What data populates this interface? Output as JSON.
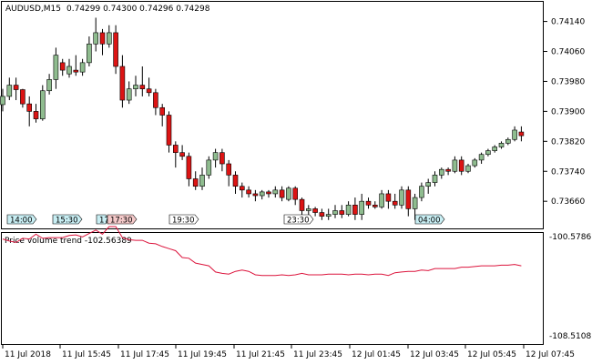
{
  "header": {
    "symbol": "AUDUSD,M15",
    "ohlc": "0.74299 0.74300 0.74296 0.74298"
  },
  "indicator": {
    "title": "Price volume trend -102.56389",
    "scale_top": "-100.57867",
    "scale_bottom": "-108.51081",
    "line_color": "#dc143c"
  },
  "colors": {
    "bull": "#8fbc8f",
    "bear": "#dc1414",
    "wick": "#000000",
    "border": "#000000"
  },
  "price_axis": {
    "labels": [
      "0.74140",
      "0.74060",
      "0.73980",
      "0.73900",
      "0.73820",
      "0.73740",
      "0.73660"
    ]
  },
  "time_axis": {
    "labels": [
      "11 Jul 2018",
      "11 Jul 15:45",
      "11 Jul 17:45",
      "11 Jul 19:45",
      "11 Jul 21:45",
      "11 Jul 23:45",
      "12 Jul 01:45",
      "12 Jul 03:45",
      "12 Jul 05:45",
      "12 Jul 07:45"
    ]
  },
  "time_markers": [
    {
      "label": "14:00",
      "color": "#c8eef3"
    },
    {
      "label": "15:30",
      "color": "#c8eef3"
    },
    {
      "label": "17:",
      "color": "#c8eef3"
    },
    {
      "label": "17:30",
      "color": "#f3c8c8"
    },
    {
      "label": "19:30",
      "color": "#ffffff"
    },
    {
      "label": "23:30",
      "color": "#ffffff"
    },
    {
      "label": "04:00",
      "color": "#c8eef3"
    }
  ],
  "chart_data": {
    "type": "candlestick",
    "candles": [
      {
        "o": 0.73918,
        "h": 0.7396,
        "l": 0.739,
        "c": 0.7394
      },
      {
        "o": 0.7394,
        "h": 0.7399,
        "l": 0.7393,
        "c": 0.7397
      },
      {
        "o": 0.7397,
        "h": 0.7399,
        "l": 0.7393,
        "c": 0.73958
      },
      {
        "o": 0.73958,
        "h": 0.7396,
        "l": 0.7391,
        "c": 0.7392
      },
      {
        "o": 0.7392,
        "h": 0.7394,
        "l": 0.7386,
        "c": 0.739
      },
      {
        "o": 0.739,
        "h": 0.7392,
        "l": 0.7387,
        "c": 0.7388
      },
      {
        "o": 0.7388,
        "h": 0.7397,
        "l": 0.73875,
        "c": 0.73955
      },
      {
        "o": 0.73955,
        "h": 0.74,
        "l": 0.73945,
        "c": 0.73985
      },
      {
        "o": 0.73985,
        "h": 0.7407,
        "l": 0.7396,
        "c": 0.7405
      },
      {
        "o": 0.7403,
        "h": 0.7404,
        "l": 0.73995,
        "c": 0.7401
      },
      {
        "o": 0.74,
        "h": 0.7404,
        "l": 0.7399,
        "c": 0.7402
      },
      {
        "o": 0.7401,
        "h": 0.7405,
        "l": 0.73995,
        "c": 0.74005
      },
      {
        "o": 0.74005,
        "h": 0.7404,
        "l": 0.73995,
        "c": 0.7403
      },
      {
        "o": 0.7403,
        "h": 0.741,
        "l": 0.7402,
        "c": 0.7408
      },
      {
        "o": 0.7408,
        "h": 0.7415,
        "l": 0.7406,
        "c": 0.7411
      },
      {
        "o": 0.7411,
        "h": 0.7412,
        "l": 0.7405,
        "c": 0.7408
      },
      {
        "o": 0.7408,
        "h": 0.7413,
        "l": 0.7407,
        "c": 0.7411
      },
      {
        "o": 0.7411,
        "h": 0.7413,
        "l": 0.74,
        "c": 0.7402
      },
      {
        "o": 0.7402,
        "h": 0.7405,
        "l": 0.7391,
        "c": 0.7393
      },
      {
        "o": 0.7393,
        "h": 0.7398,
        "l": 0.7392,
        "c": 0.7396
      },
      {
        "o": 0.7396,
        "h": 0.73995,
        "l": 0.7394,
        "c": 0.7397
      },
      {
        "o": 0.7397,
        "h": 0.7402,
        "l": 0.7394,
        "c": 0.7396
      },
      {
        "o": 0.7396,
        "h": 0.7399,
        "l": 0.7394,
        "c": 0.7395
      },
      {
        "o": 0.7395,
        "h": 0.7396,
        "l": 0.7389,
        "c": 0.7391
      },
      {
        "o": 0.7391,
        "h": 0.7392,
        "l": 0.7386,
        "c": 0.7389
      },
      {
        "o": 0.7389,
        "h": 0.739,
        "l": 0.7379,
        "c": 0.7381
      },
      {
        "o": 0.7381,
        "h": 0.7382,
        "l": 0.7375,
        "c": 0.7379
      },
      {
        "o": 0.7379,
        "h": 0.7381,
        "l": 0.7377,
        "c": 0.7378
      },
      {
        "o": 0.7378,
        "h": 0.7379,
        "l": 0.737,
        "c": 0.7372
      },
      {
        "o": 0.7372,
        "h": 0.7374,
        "l": 0.7369,
        "c": 0.737
      },
      {
        "o": 0.737,
        "h": 0.7375,
        "l": 0.7369,
        "c": 0.7373
      },
      {
        "o": 0.7373,
        "h": 0.7378,
        "l": 0.7372,
        "c": 0.7377
      },
      {
        "o": 0.7377,
        "h": 0.738,
        "l": 0.7375,
        "c": 0.7379
      },
      {
        "o": 0.7379,
        "h": 0.738,
        "l": 0.7374,
        "c": 0.7376
      },
      {
        "o": 0.7376,
        "h": 0.7377,
        "l": 0.737,
        "c": 0.7373
      },
      {
        "o": 0.7373,
        "h": 0.7374,
        "l": 0.7368,
        "c": 0.737
      },
      {
        "o": 0.737,
        "h": 0.7371,
        "l": 0.7367,
        "c": 0.7369
      },
      {
        "o": 0.7369,
        "h": 0.737,
        "l": 0.7367,
        "c": 0.7368
      },
      {
        "o": 0.7368,
        "h": 0.7369,
        "l": 0.7366,
        "c": 0.73675
      },
      {
        "o": 0.73675,
        "h": 0.7369,
        "l": 0.73665,
        "c": 0.73685
      },
      {
        "o": 0.73685,
        "h": 0.7369,
        "l": 0.7367,
        "c": 0.7368
      },
      {
        "o": 0.7368,
        "h": 0.737,
        "l": 0.7367,
        "c": 0.7369
      },
      {
        "o": 0.7369,
        "h": 0.737,
        "l": 0.7366,
        "c": 0.7367
      },
      {
        "o": 0.73665,
        "h": 0.737,
        "l": 0.7366,
        "c": 0.73695
      },
      {
        "o": 0.73695,
        "h": 0.737,
        "l": 0.7365,
        "c": 0.73665
      },
      {
        "o": 0.73665,
        "h": 0.7367,
        "l": 0.7362,
        "c": 0.73635
      },
      {
        "o": 0.73635,
        "h": 0.7365,
        "l": 0.7362,
        "c": 0.7364
      },
      {
        "o": 0.7364,
        "h": 0.73645,
        "l": 0.7362,
        "c": 0.7363
      },
      {
        "o": 0.7363,
        "h": 0.7364,
        "l": 0.7361,
        "c": 0.7362
      },
      {
        "o": 0.7362,
        "h": 0.7364,
        "l": 0.7361,
        "c": 0.73625
      },
      {
        "o": 0.73625,
        "h": 0.7365,
        "l": 0.73615,
        "c": 0.73635
      },
      {
        "o": 0.73635,
        "h": 0.7365,
        "l": 0.73615,
        "c": 0.73625
      },
      {
        "o": 0.73625,
        "h": 0.7366,
        "l": 0.7362,
        "c": 0.7365
      },
      {
        "o": 0.7365,
        "h": 0.7367,
        "l": 0.7361,
        "c": 0.73625
      },
      {
        "o": 0.73625,
        "h": 0.7368,
        "l": 0.7361,
        "c": 0.7366
      },
      {
        "o": 0.7366,
        "h": 0.7367,
        "l": 0.7364,
        "c": 0.7365
      },
      {
        "o": 0.7365,
        "h": 0.7366,
        "l": 0.7364,
        "c": 0.73645
      },
      {
        "o": 0.73645,
        "h": 0.7369,
        "l": 0.7364,
        "c": 0.7368
      },
      {
        "o": 0.7368,
        "h": 0.7369,
        "l": 0.7364,
        "c": 0.7366
      },
      {
        "o": 0.7366,
        "h": 0.7368,
        "l": 0.7364,
        "c": 0.7365
      },
      {
        "o": 0.7365,
        "h": 0.737,
        "l": 0.7364,
        "c": 0.7369
      },
      {
        "o": 0.7369,
        "h": 0.737,
        "l": 0.7362,
        "c": 0.7364
      },
      {
        "o": 0.7364,
        "h": 0.7368,
        "l": 0.7361,
        "c": 0.7367
      },
      {
        "o": 0.7367,
        "h": 0.7371,
        "l": 0.7366,
        "c": 0.737
      },
      {
        "o": 0.737,
        "h": 0.7372,
        "l": 0.7368,
        "c": 0.7371
      },
      {
        "o": 0.7371,
        "h": 0.7374,
        "l": 0.737,
        "c": 0.7373
      },
      {
        "o": 0.7373,
        "h": 0.7375,
        "l": 0.7372,
        "c": 0.73745
      },
      {
        "o": 0.73745,
        "h": 0.7375,
        "l": 0.7373,
        "c": 0.7374
      },
      {
        "o": 0.7374,
        "h": 0.7378,
        "l": 0.73735,
        "c": 0.7377
      },
      {
        "o": 0.7377,
        "h": 0.7378,
        "l": 0.7373,
        "c": 0.7374
      },
      {
        "o": 0.7374,
        "h": 0.7376,
        "l": 0.73735,
        "c": 0.73755
      },
      {
        "o": 0.73755,
        "h": 0.73775,
        "l": 0.7375,
        "c": 0.7377
      },
      {
        "o": 0.7377,
        "h": 0.7379,
        "l": 0.7376,
        "c": 0.73785
      },
      {
        "o": 0.73785,
        "h": 0.738,
        "l": 0.7378,
        "c": 0.73795
      },
      {
        "o": 0.73795,
        "h": 0.7381,
        "l": 0.7379,
        "c": 0.73805
      },
      {
        "o": 0.73805,
        "h": 0.7382,
        "l": 0.738,
        "c": 0.73815
      },
      {
        "o": 0.73815,
        "h": 0.7383,
        "l": 0.7381,
        "c": 0.73825
      },
      {
        "o": 0.73825,
        "h": 0.7386,
        "l": 0.7382,
        "c": 0.7385
      },
      {
        "o": 0.73845,
        "h": 0.7386,
        "l": 0.7382,
        "c": 0.73835
      }
    ],
    "pvt": [
      -100.95,
      -101.1,
      -101.2,
      -100.9,
      -100.95,
      -100.6,
      -100.9,
      -100.85,
      -100.85,
      -100.85,
      -100.7,
      -100.65,
      -100.8,
      -100.55,
      -100.3,
      -100.6,
      -100.05,
      -100.05,
      -100.85,
      -101.0,
      -101.05,
      -101.05,
      -101.25,
      -101.3,
      -101.5,
      -101.65,
      -101.8,
      -102.3,
      -102.35,
      -102.7,
      -102.8,
      -102.9,
      -103.35,
      -103.45,
      -103.5,
      -103.3,
      -103.2,
      -103.3,
      -103.55,
      -103.6,
      -103.6,
      -103.6,
      -103.55,
      -103.6,
      -103.55,
      -103.45,
      -103.55,
      -103.55,
      -103.55,
      -103.5,
      -103.5,
      -103.5,
      -103.55,
      -103.5,
      -103.5,
      -103.55,
      -103.5,
      -103.5,
      -103.6,
      -103.4,
      -103.35,
      -103.3,
      -103.3,
      -103.2,
      -103.25,
      -103.1,
      -103.1,
      -103.1,
      -103.1,
      -103.0,
      -103.0,
      -102.95,
      -102.9,
      -102.9,
      -102.9,
      -102.85,
      -102.85,
      -102.8,
      -102.9
    ],
    "price_range": [
      0.7359,
      0.7419
    ],
    "pvt_range": [
      -108.51081,
      -100.57867
    ]
  }
}
